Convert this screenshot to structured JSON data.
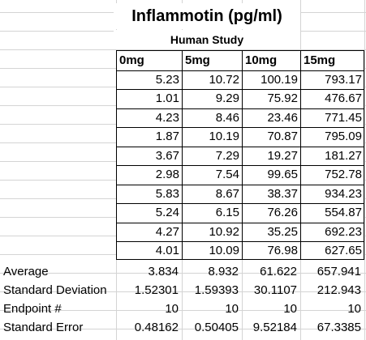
{
  "title": "Inflammotin (pg/ml)",
  "subtitle": "Human Study",
  "columns": [
    "0mg",
    "5mg",
    "10mg",
    "15mg"
  ],
  "rows": [
    [
      "5.23",
      "10.72",
      "100.19",
      "793.17"
    ],
    [
      "1.01",
      "9.29",
      "75.92",
      "476.67"
    ],
    [
      "4.23",
      "8.46",
      "23.46",
      "771.45"
    ],
    [
      "1.87",
      "10.19",
      "70.87",
      "795.09"
    ],
    [
      "3.67",
      "7.29",
      "19.27",
      "181.27"
    ],
    [
      "2.98",
      "7.54",
      "99.65",
      "752.78"
    ],
    [
      "5.83",
      "8.67",
      "38.37",
      "934.23"
    ],
    [
      "5.24",
      "6.15",
      "76.26",
      "554.87"
    ],
    [
      "4.27",
      "10.92",
      "35.25",
      "692.23"
    ],
    [
      "4.01",
      "10.09",
      "76.98",
      "627.65"
    ]
  ],
  "stats": [
    {
      "label": "Average",
      "values": [
        "3.834",
        "8.932",
        "61.622",
        "657.941"
      ]
    },
    {
      "label": "Standard Deviation",
      "values": [
        "1.52301",
        "1.59393",
        "30.1107",
        "212.943"
      ]
    },
    {
      "label": "Endpoint #",
      "values": [
        "10",
        "10",
        "10",
        "10"
      ]
    },
    {
      "label": "Standard Error",
      "values": [
        "0.48162",
        "0.50405",
        "9.52184",
        "67.3385"
      ]
    }
  ]
}
